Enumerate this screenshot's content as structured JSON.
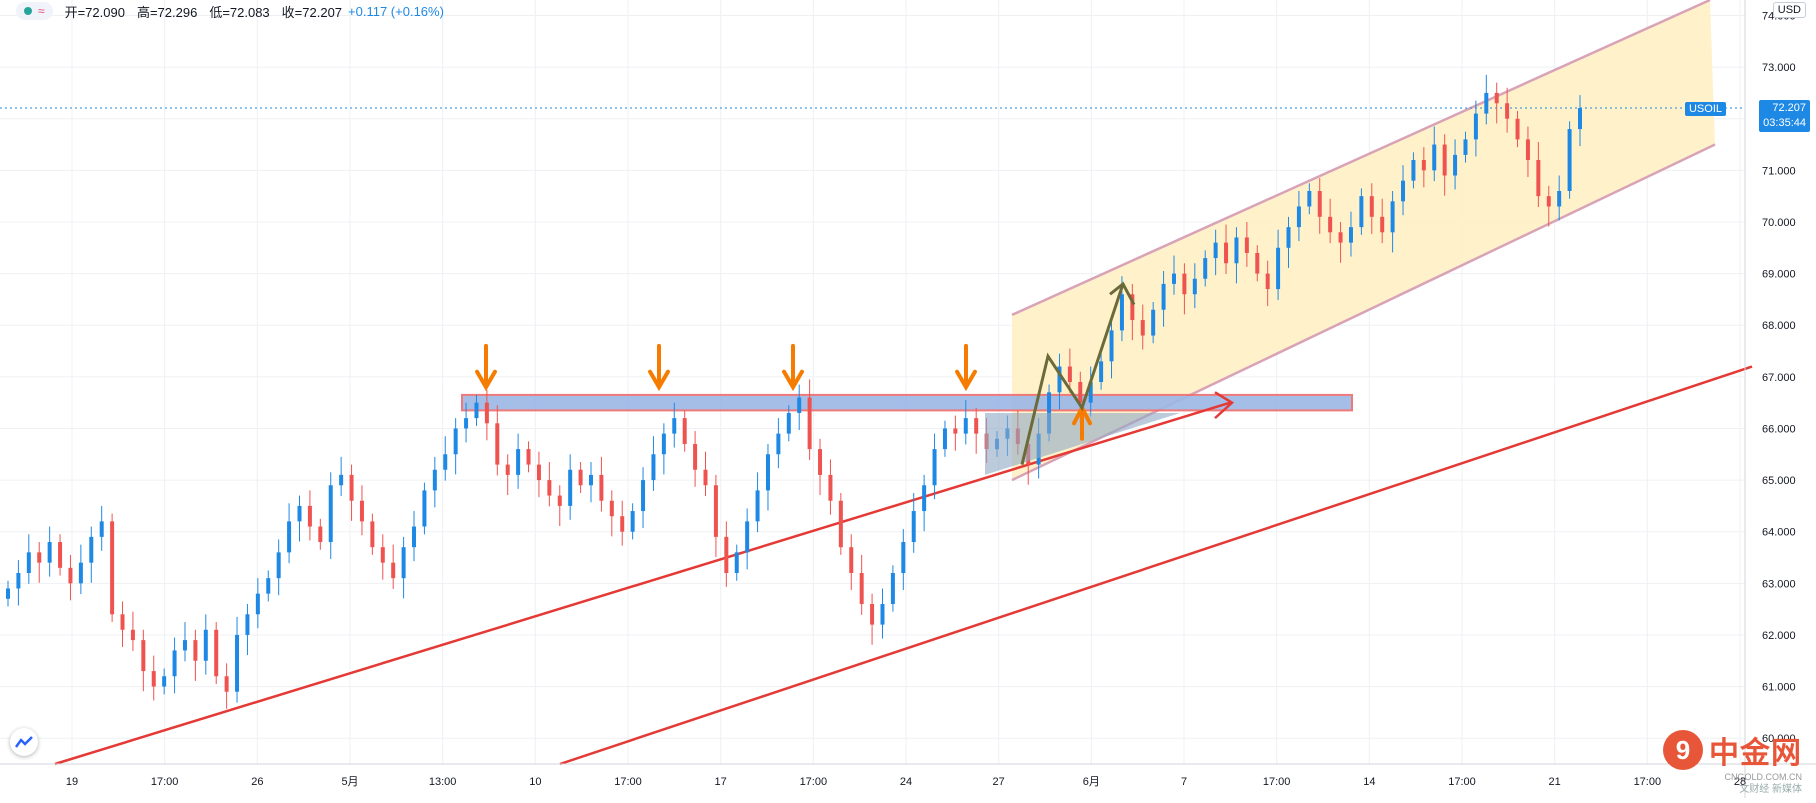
{
  "header": {
    "status_glyph": "≈",
    "open_label": "开=72.090",
    "high_label": "高=72.296",
    "low_label": "低=72.083",
    "close_label": "收=72.207",
    "change_label": "+0.117 (+0.16%)"
  },
  "currency_label": "USD",
  "price_tag": {
    "symbol": "USOIL",
    "price": "72.207",
    "countdown": "03:35:44"
  },
  "watermark": {
    "brand": "中金网",
    "url": "CNGOLD.COM.CN",
    "tagline": "文财经 新媒体"
  },
  "colors": {
    "up": "#1e88e5",
    "down": "#ef5350",
    "trend": "#e53935",
    "resistance_fill": "#9bb7e6",
    "channel_fill": "#fff0c2",
    "channel_edge": "#d9a3b7",
    "arrow": "#f57c00",
    "zigzag": "#6b6b3a"
  },
  "chart_data": {
    "type": "candlestick",
    "symbol": "USOIL",
    "currency": "USD",
    "y_axis": {
      "ticks": [
        "60.000",
        "61.000",
        "62.000",
        "63.000",
        "64.000",
        "65.000",
        "66.000",
        "67.000",
        "68.000",
        "69.000",
        "70.000",
        "71.000",
        "72.000",
        "73.000",
        "74.000"
      ],
      "range": [
        59.5,
        74.3
      ]
    },
    "x_axis": {
      "ticks": [
        "19",
        "17:00",
        "26",
        "5月",
        "13:00",
        "10",
        "17:00",
        "17",
        "17:00",
        "24",
        "27",
        "6月",
        "7",
        "17:00",
        "14",
        "17:00",
        "21",
        "17:00",
        "28"
      ]
    },
    "last_price": 72.207,
    "ohlc": {
      "open": 72.09,
      "high": 72.296,
      "low": 72.083,
      "close": 72.207,
      "change": 0.117,
      "change_pct": 0.16
    },
    "closes": [
      62.9,
      63.2,
      63.6,
      63.4,
      63.8,
      63.3,
      63.0,
      63.4,
      63.9,
      64.2,
      62.4,
      62.1,
      61.9,
      61.3,
      61.0,
      61.2,
      61.7,
      61.9,
      61.5,
      62.1,
      61.2,
      60.9,
      62.0,
      62.4,
      62.8,
      63.1,
      63.6,
      64.2,
      64.5,
      64.1,
      63.8,
      64.9,
      65.1,
      64.6,
      64.2,
      63.7,
      63.4,
      63.1,
      63.7,
      64.1,
      64.8,
      65.2,
      65.5,
      66.0,
      66.2,
      66.5,
      66.1,
      65.3,
      65.1,
      65.6,
      65.3,
      65.0,
      64.7,
      64.5,
      65.2,
      64.9,
      65.1,
      64.6,
      64.3,
      64.0,
      64.4,
      65.0,
      65.5,
      65.9,
      66.2,
      65.7,
      65.2,
      64.9,
      63.9,
      63.2,
      63.6,
      64.2,
      64.8,
      65.5,
      65.9,
      66.3,
      66.6,
      65.6,
      65.1,
      64.6,
      63.7,
      63.2,
      62.6,
      62.2,
      62.6,
      63.2,
      63.8,
      64.4,
      64.9,
      65.6,
      66.0,
      65.9,
      66.2,
      65.9,
      65.6,
      65.8,
      66.0,
      65.7,
      65.3,
      65.9,
      66.7,
      67.2,
      66.9,
      66.5,
      66.9,
      67.3,
      67.9,
      68.6,
      68.1,
      67.8,
      68.3,
      68.8,
      69.0,
      68.6,
      68.9,
      69.3,
      69.6,
      69.2,
      69.7,
      69.4,
      69.0,
      68.7,
      69.5,
      69.9,
      70.3,
      70.6,
      70.1,
      69.8,
      69.6,
      69.9,
      70.5,
      70.1,
      69.8,
      70.4,
      70.8,
      71.2,
      71.0,
      71.5,
      70.9,
      71.3,
      71.6,
      72.1,
      72.5,
      72.3,
      72.0,
      71.6,
      71.2,
      70.5,
      70.3,
      70.6,
      71.8,
      72.207
    ]
  }
}
